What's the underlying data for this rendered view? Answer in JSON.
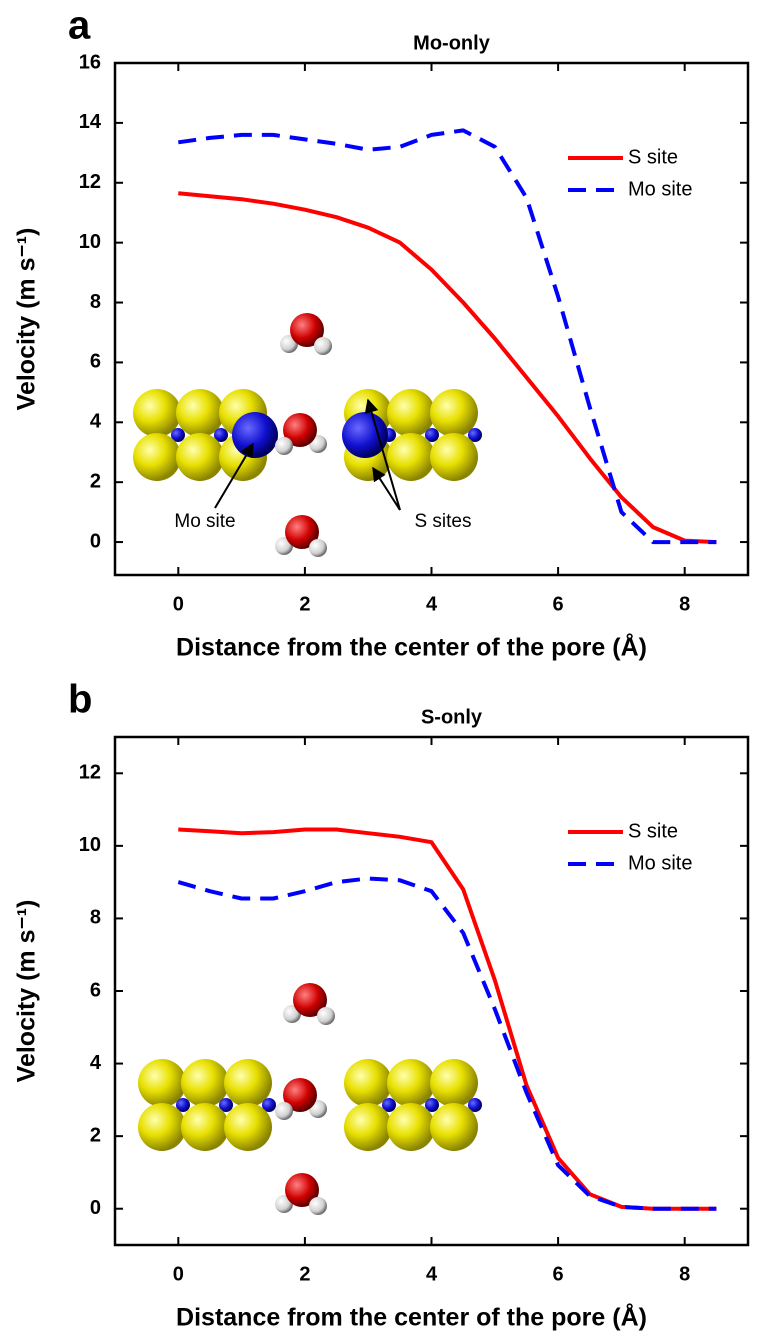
{
  "chart_data": [
    {
      "type": "line",
      "panel_label": "a",
      "title": "Mo-only",
      "x_label": "Distance from the center of the pore (Å)",
      "y_label": "Velocity (m s⁻¹)",
      "x": [
        0,
        0.5,
        1,
        1.5,
        2,
        2.5,
        3,
        3.5,
        4,
        4.5,
        5,
        5.5,
        6,
        6.5,
        7,
        7.5,
        8,
        8.5
      ],
      "series": [
        {
          "name": "S site",
          "color": "#ff0000",
          "dash": "solid",
          "values": [
            11.65,
            11.55,
            11.45,
            11.3,
            11.1,
            10.85,
            10.5,
            10.0,
            9.1,
            8.0,
            6.8,
            5.5,
            4.2,
            2.8,
            1.5,
            0.5,
            0.05,
            0
          ]
        },
        {
          "name": "Mo site",
          "color": "#0000ff",
          "dash": "dashed",
          "values": [
            13.35,
            13.5,
            13.6,
            13.6,
            13.45,
            13.3,
            13.1,
            13.2,
            13.6,
            13.75,
            13.2,
            11.5,
            8.2,
            4.5,
            1.0,
            0,
            0,
            0
          ]
        }
      ],
      "xlim": [
        -1,
        9
      ],
      "ylim": [
        -1.1,
        16
      ],
      "xticks": [
        0,
        2,
        4,
        6,
        8
      ],
      "yticks": [
        0,
        2,
        4,
        6,
        8,
        10,
        12,
        14,
        16
      ],
      "legend": "upper right",
      "annotations": [
        "Mo site",
        "S sites"
      ]
    },
    {
      "type": "line",
      "panel_label": "b",
      "title": "S-only",
      "x_label": "Distance from the center of the pore (Å)",
      "y_label": "Velocity (m s⁻¹)",
      "x": [
        0,
        0.5,
        1,
        1.5,
        2,
        2.5,
        3,
        3.5,
        4,
        4.5,
        5,
        5.5,
        6,
        6.5,
        7,
        7.5,
        8,
        8.5
      ],
      "series": [
        {
          "name": "S site",
          "color": "#ff0000",
          "dash": "solid",
          "values": [
            10.45,
            10.4,
            10.35,
            10.38,
            10.45,
            10.45,
            10.35,
            10.25,
            10.1,
            8.8,
            6.3,
            3.4,
            1.4,
            0.4,
            0.05,
            0,
            0,
            0
          ]
        },
        {
          "name": "Mo site",
          "color": "#0000ff",
          "dash": "dashed",
          "values": [
            9.0,
            8.75,
            8.55,
            8.55,
            8.75,
            9.0,
            9.1,
            9.05,
            8.75,
            7.6,
            5.5,
            3.2,
            1.2,
            0.35,
            0.05,
            0,
            0,
            0
          ]
        }
      ],
      "xlim": [
        -1,
        9
      ],
      "ylim": [
        -1,
        13
      ],
      "xticks": [
        0,
        2,
        4,
        6,
        8
      ],
      "yticks": [
        0,
        2,
        4,
        6,
        8,
        10,
        12
      ],
      "legend": "upper right"
    }
  ]
}
